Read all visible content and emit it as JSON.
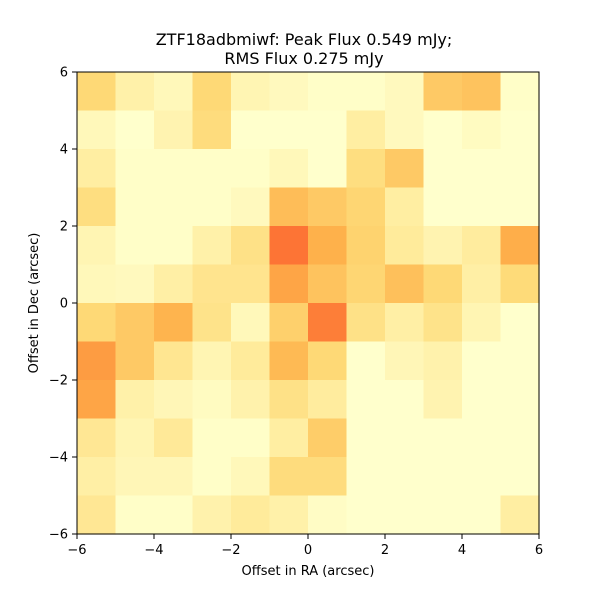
{
  "chart_data": {
    "type": "heatmap",
    "title": [
      "ZTF18adbmiwf: Peak Flux 0.549 mJy;",
      "RMS Flux 0.275 mJy"
    ],
    "xlabel": "Offset in RA (arcsec)",
    "ylabel": "Offset in Dec (arcsec)",
    "xlim": [
      -6,
      6
    ],
    "ylim": [
      -6,
      6
    ],
    "xticks": [
      -6,
      -4,
      -2,
      0,
      2,
      4,
      6
    ],
    "yticks": [
      -6,
      -4,
      -2,
      0,
      2,
      4,
      6
    ],
    "xtick_labels": [
      "−6",
      "−4",
      "−2",
      "0",
      "2",
      "4",
      "6"
    ],
    "ytick_labels": [
      "−6",
      "−4",
      "−2",
      "0",
      "2",
      "4",
      "6"
    ],
    "grid": false,
    "colormap": "YlOrRd",
    "cell_size_arcsec": 1,
    "note_rows": "rows listed from top (Dec 5 to 6) to bottom (Dec -6 to -5); columns from RA -6 to 6",
    "values": [
      [
        0.25,
        0.1,
        0.05,
        0.25,
        0.07,
        0.04,
        0.01,
        0.01,
        0.04,
        0.3,
        0.32,
        0.01
      ],
      [
        0.05,
        0.0,
        0.08,
        0.23,
        0.0,
        0.0,
        0.0,
        0.12,
        0.04,
        0.0,
        0.03,
        0.0
      ],
      [
        0.12,
        0.01,
        0.01,
        0.01,
        0.01,
        0.05,
        0.0,
        0.22,
        0.3,
        0.0,
        0.0,
        0.0
      ],
      [
        0.22,
        0.01,
        0.01,
        0.01,
        0.04,
        0.34,
        0.3,
        0.26,
        0.12,
        0.0,
        0.0,
        0.0
      ],
      [
        0.07,
        0.01,
        0.01,
        0.1,
        0.2,
        0.55,
        0.38,
        0.27,
        0.14,
        0.08,
        0.13,
        0.39
      ],
      [
        0.05,
        0.04,
        0.11,
        0.18,
        0.18,
        0.42,
        0.32,
        0.26,
        0.33,
        0.25,
        0.11,
        0.24
      ],
      [
        0.25,
        0.3,
        0.37,
        0.19,
        0.05,
        0.28,
        0.53,
        0.2,
        0.11,
        0.19,
        0.07,
        0.0
      ],
      [
        0.45,
        0.3,
        0.17,
        0.07,
        0.14,
        0.35,
        0.25,
        0.0,
        0.06,
        0.09,
        0.0,
        0.0
      ],
      [
        0.42,
        0.1,
        0.06,
        0.03,
        0.09,
        0.2,
        0.13,
        0.0,
        0.0,
        0.08,
        0.0,
        0.0
      ],
      [
        0.16,
        0.07,
        0.15,
        0.01,
        0.01,
        0.12,
        0.29,
        0.0,
        0.0,
        0.0,
        0.0,
        0.0
      ],
      [
        0.11,
        0.06,
        0.06,
        0.01,
        0.05,
        0.23,
        0.23,
        0.0,
        0.0,
        0.0,
        0.0,
        0.0
      ],
      [
        0.16,
        0.01,
        0.01,
        0.09,
        0.14,
        0.1,
        0.02,
        0.0,
        0.0,
        0.0,
        0.0,
        0.12
      ]
    ]
  }
}
